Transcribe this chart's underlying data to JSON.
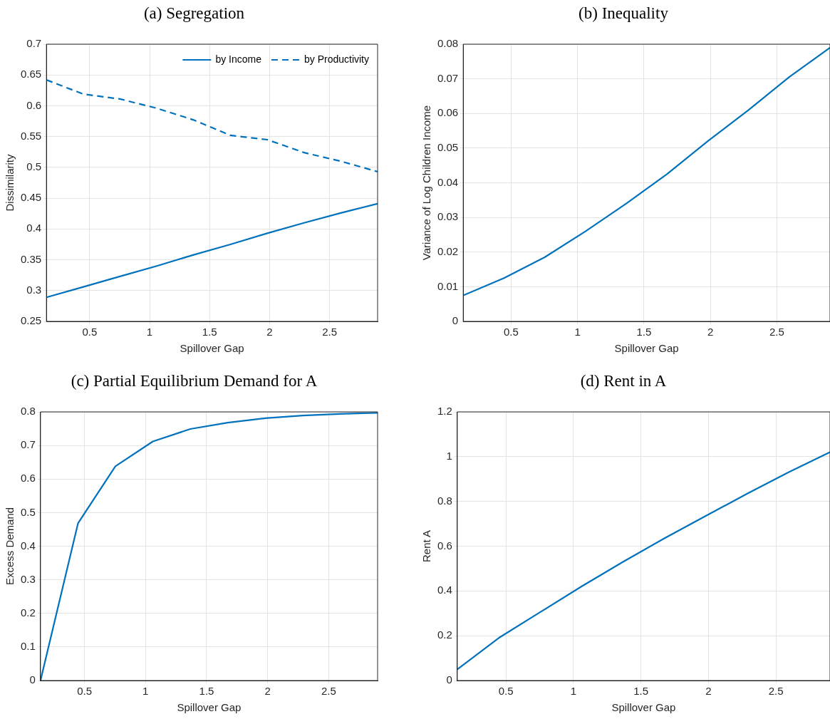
{
  "chart_data": [
    {
      "type": "line",
      "title": "(a) Segregation",
      "xlabel": "Spillover Gap",
      "ylabel": "Dissimilarity",
      "x": [
        0.14,
        0.447,
        0.753,
        1.06,
        1.367,
        1.673,
        1.98,
        2.287,
        2.593,
        2.9
      ],
      "xlim": [
        0.14,
        2.9
      ],
      "xticks": [
        0.5,
        1,
        1.5,
        2,
        2.5
      ],
      "ylim": [
        0.25,
        0.7
      ],
      "yticks": [
        0.25,
        0.3,
        0.35,
        0.4,
        0.45,
        0.5,
        0.55,
        0.6,
        0.65,
        0.7
      ],
      "grid": true,
      "legend": "top right",
      "series": [
        {
          "name": "by Income",
          "color": "#0072bd",
          "line_style": "solid",
          "values": [
            0.289,
            0.306,
            0.323,
            0.34,
            0.358,
            0.375,
            0.393,
            0.41,
            0.426,
            0.441
          ]
        },
        {
          "name": "by Productivity",
          "color": "#0072bd",
          "line_style": "dashed",
          "values": [
            0.642,
            0.619,
            0.611,
            0.596,
            0.577,
            0.552,
            0.545,
            0.524,
            0.51,
            0.493
          ]
        }
      ]
    },
    {
      "type": "line",
      "title": "(b) Inequality",
      "xlabel": "Spillover Gap",
      "ylabel": "Variance of Log Children Income",
      "x": [
        0.14,
        0.447,
        0.753,
        1.06,
        1.367,
        1.673,
        1.98,
        2.287,
        2.593,
        2.9
      ],
      "xlim": [
        0.14,
        2.9
      ],
      "xticks": [
        0.5,
        1,
        1.5,
        2,
        2.5
      ],
      "ylim": [
        0,
        0.08
      ],
      "yticks": [
        0,
        0.01,
        0.02,
        0.03,
        0.04,
        0.05,
        0.06,
        0.07,
        0.08
      ],
      "grid": true,
      "series": [
        {
          "color": "#0072bd",
          "values": [
            0.0075,
            0.0125,
            0.0185,
            0.026,
            0.034,
            0.0425,
            0.052,
            0.061,
            0.0705,
            0.079
          ]
        }
      ]
    },
    {
      "type": "line",
      "title": "(c) Partial Equilibrium Demand for A",
      "xlabel": "Spillover Gap",
      "ylabel": "Excess Demand",
      "x": [
        0.14,
        0.447,
        0.753,
        1.06,
        1.367,
        1.673,
        1.98,
        2.287,
        2.593,
        2.9
      ],
      "xlim": [
        0.14,
        2.9
      ],
      "xticks": [
        0.5,
        1,
        1.5,
        2,
        2.5
      ],
      "ylim": [
        0,
        0.8
      ],
      "yticks": [
        0,
        0.1,
        0.2,
        0.3,
        0.4,
        0.5,
        0.6,
        0.7,
        0.8
      ],
      "grid": true,
      "series": [
        {
          "color": "#0072bd",
          "values": [
            0,
            0.468,
            0.638,
            0.712,
            0.749,
            0.768,
            0.781,
            0.789,
            0.794,
            0.797
          ]
        }
      ]
    },
    {
      "type": "line",
      "title": "(d) Rent in A",
      "xlabel": "Spillover Gap",
      "ylabel": "Rent A",
      "x": [
        0.14,
        0.447,
        0.753,
        1.06,
        1.367,
        1.673,
        1.98,
        2.287,
        2.593,
        2.9
      ],
      "xlim": [
        0.14,
        2.9
      ],
      "xticks": [
        0.5,
        1,
        1.5,
        2,
        2.5
      ],
      "ylim": [
        0,
        1.2
      ],
      "yticks": [
        0,
        0.2,
        0.4,
        0.6,
        0.8,
        1,
        1.2
      ],
      "grid": true,
      "series": [
        {
          "color": "#0072bd",
          "values": [
            0.05,
            0.19,
            0.305,
            0.42,
            0.53,
            0.635,
            0.735,
            0.835,
            0.93,
            1.02
          ]
        }
      ]
    }
  ]
}
